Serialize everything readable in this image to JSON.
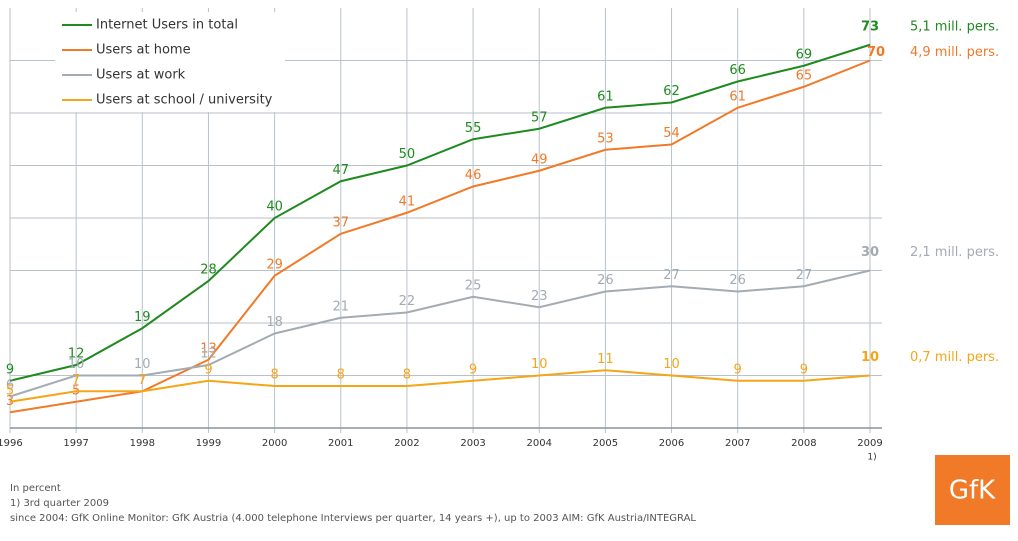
{
  "chart_data": {
    "type": "line",
    "x": [
      1996,
      1997,
      1998,
      1999,
      2000,
      2001,
      2002,
      2003,
      2004,
      2005,
      2006,
      2007,
      2008,
      2009
    ],
    "xlim": [
      1996,
      2009
    ],
    "xticks": [
      1996,
      1997,
      1998,
      1999,
      2000,
      2001,
      2002,
      2003,
      2004,
      2005,
      2006,
      2007,
      2008,
      2009
    ],
    "xtick_note": "1)",
    "ylim": [
      0,
      80
    ],
    "yticks": [
      0,
      10,
      20,
      30,
      40,
      50,
      60,
      70
    ],
    "grid": true,
    "series": [
      {
        "name": "Internet Users in total",
        "color": "#1f8a1f",
        "values": [
          9,
          12,
          19,
          28,
          40,
          47,
          50,
          55,
          57,
          61,
          62,
          66,
          69,
          73
        ],
        "end_label": "5,1 mill. pers."
      },
      {
        "name": "Users at home",
        "color": "#f07a28",
        "values": [
          3,
          5,
          7,
          13,
          29,
          37,
          41,
          46,
          49,
          53,
          54,
          61,
          65,
          70
        ],
        "end_label": "4,9 mill. pers."
      },
      {
        "name": "Users at work",
        "color": "#a3abb3",
        "values": [
          6,
          10,
          10,
          12,
          18,
          21,
          22,
          25,
          23,
          26,
          27,
          26,
          27,
          30
        ],
        "end_label": "2,1 mill. pers."
      },
      {
        "name": "Users at school / university",
        "color": "#f5a516",
        "values": [
          5,
          7,
          7,
          9,
          8,
          8,
          8,
          9,
          10,
          11,
          10,
          9,
          9,
          10
        ],
        "end_label": "0,7 mill. pers."
      }
    ],
    "footnotes": [
      "In percent",
      "1) 3rd quarter 2009",
      "since 2004: GfK Online Monitor: GfK Austria (4.000 telephone Interviews per quarter, 14 years +), up to 2003 AIM: GfK Austria/INTEGRAL"
    ],
    "logo": "GfK"
  }
}
